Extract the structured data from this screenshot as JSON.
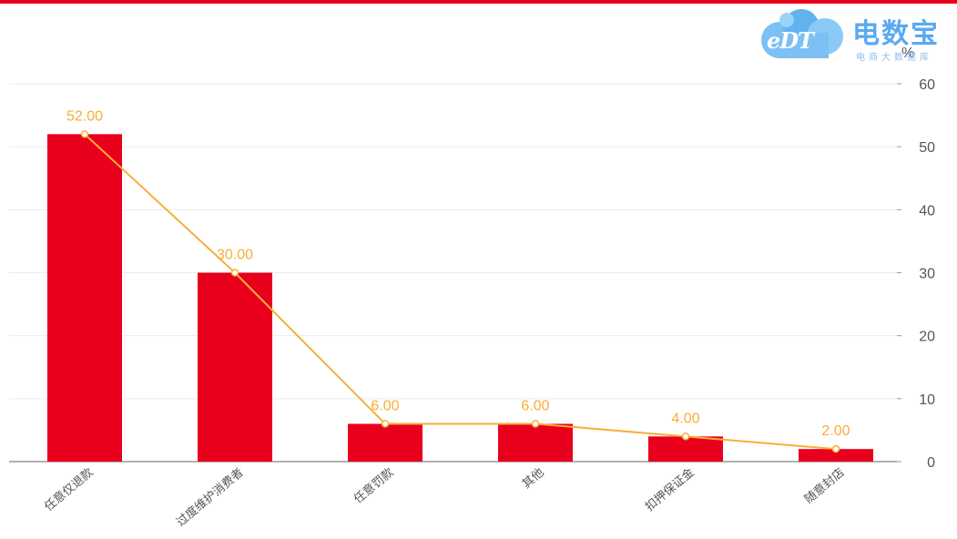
{
  "chart_data": {
    "type": "bar",
    "categories": [
      "任意仅退款",
      "过度维护消费者",
      "任意罚款",
      "其他",
      "扣押保证金",
      "随意封店"
    ],
    "series": [
      {
        "type": "bar",
        "values": [
          52,
          30,
          6,
          6,
          4,
          2
        ]
      },
      {
        "type": "line",
        "values": [
          52,
          30,
          6,
          6,
          4,
          2
        ]
      }
    ],
    "data_labels": [
      "52.00",
      "30.00",
      "6.00",
      "6.00",
      "4.00",
      "2.00"
    ],
    "y_axis": {
      "position": "right",
      "unit": "%",
      "ylim": [
        0,
        60
      ],
      "ticks": [
        0,
        10,
        20,
        30,
        40,
        50,
        60
      ]
    },
    "grid": true,
    "colors": {
      "bar": "#e8001c",
      "line": "#f9ad3a",
      "label": "#f9ad3a",
      "grid": "#ececec",
      "axis": "#999999",
      "tick_text": "#555555"
    }
  },
  "logo": {
    "badge": "eDT",
    "name": "电数宝",
    "subtitle": "电商大数据库"
  },
  "top_bar_color": "#e8001c"
}
